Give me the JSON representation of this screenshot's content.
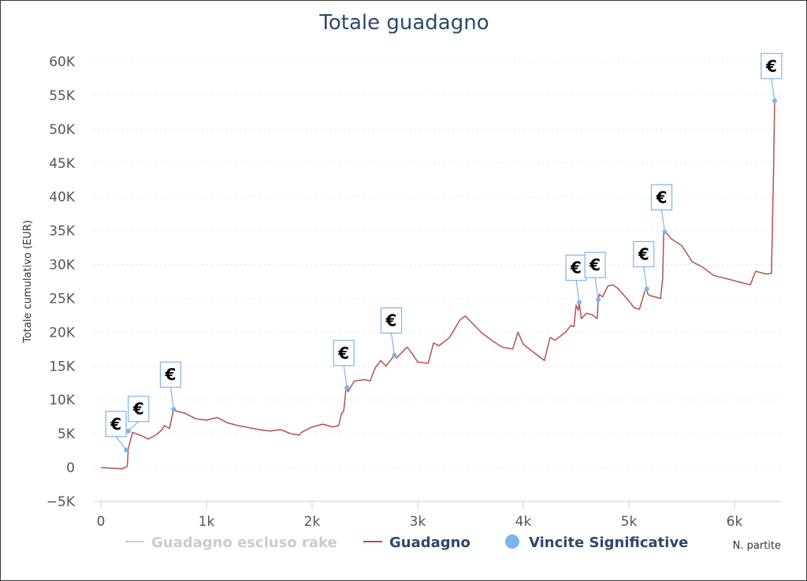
{
  "chart_data": {
    "type": "line",
    "title": "Totale guadagno",
    "xlabel": "N. partite",
    "ylabel": "Totale cumulativo (EUR)",
    "xlim": [
      0,
      6400
    ],
    "ylim": [
      -5000,
      60000
    ],
    "x_ticks": [
      {
        "value": 0,
        "label": "0"
      },
      {
        "value": 1000,
        "label": "1k"
      },
      {
        "value": 2000,
        "label": "2k"
      },
      {
        "value": 3000,
        "label": "3k"
      },
      {
        "value": 4000,
        "label": "4k"
      },
      {
        "value": 5000,
        "label": "5k"
      },
      {
        "value": 6000,
        "label": "6k"
      }
    ],
    "y_ticks": [
      {
        "value": -5000,
        "label": "−5K"
      },
      {
        "value": 0,
        "label": "0"
      },
      {
        "value": 5000,
        "label": "5K"
      },
      {
        "value": 10000,
        "label": "10K"
      },
      {
        "value": 15000,
        "label": "15K"
      },
      {
        "value": 20000,
        "label": "20K"
      },
      {
        "value": 25000,
        "label": "25K"
      },
      {
        "value": 30000,
        "label": "30K"
      },
      {
        "value": 35000,
        "label": "35K"
      },
      {
        "value": 40000,
        "label": "40K"
      },
      {
        "value": 45000,
        "label": "45K"
      },
      {
        "value": 50000,
        "label": "50K"
      },
      {
        "value": 55000,
        "label": "55K"
      },
      {
        "value": 60000,
        "label": "60K"
      }
    ],
    "grid": "horizontal-dotted",
    "legend_position": "bottom",
    "series": [
      {
        "name": "Guadagno escluso rake",
        "color": "#cccccc",
        "visible": false,
        "x": [],
        "y": []
      },
      {
        "name": "Guadagno",
        "color": "#b5524c",
        "visible": true,
        "x": [
          0,
          100,
          200,
          250,
          260,
          300,
          400,
          450,
          520,
          580,
          600,
          650,
          680,
          690,
          700,
          800,
          900,
          1000,
          1100,
          1200,
          1300,
          1400,
          1500,
          1600,
          1700,
          1800,
          1880,
          1900,
          2000,
          2100,
          2200,
          2250,
          2280,
          2300,
          2320,
          2330,
          2340,
          2400,
          2500,
          2550,
          2600,
          2650,
          2700,
          2750,
          2780,
          2800,
          2900,
          2950,
          3000,
          3100,
          3150,
          3200,
          3300,
          3400,
          3450,
          3500,
          3600,
          3700,
          3800,
          3900,
          3950,
          4000,
          4100,
          4200,
          4250,
          4260,
          4300,
          4400,
          4450,
          4480,
          4500,
          4520,
          4530,
          4550,
          4600,
          4650,
          4700,
          4710,
          4720,
          4750,
          4800,
          4850,
          4900,
          5000,
          5050,
          5100,
          5150,
          5170,
          5180,
          5200,
          5300,
          5320,
          5330,
          5340,
          5350,
          5400,
          5500,
          5600,
          5700,
          5800,
          5900,
          6000,
          6100,
          6150,
          6200,
          6250,
          6300,
          6350,
          6370,
          6380,
          6390
        ],
        "y": [
          0,
          -100,
          -200,
          200,
          2800,
          5200,
          4600,
          4200,
          4800,
          5600,
          6200,
          5800,
          8000,
          8600,
          8400,
          8000,
          7200,
          7000,
          7400,
          6600,
          6200,
          5900,
          5600,
          5400,
          5600,
          5000,
          4800,
          5200,
          6000,
          6400,
          6000,
          6200,
          8000,
          8400,
          11500,
          11800,
          11200,
          12800,
          13000,
          12800,
          14800,
          15800,
          15000,
          16000,
          16600,
          16200,
          17800,
          16800,
          15600,
          15400,
          18400,
          18000,
          19200,
          21800,
          22400,
          21600,
          20000,
          18800,
          17800,
          17500,
          20000,
          18200,
          17000,
          15800,
          19000,
          19200,
          18800,
          20000,
          21000,
          20800,
          24000,
          23200,
          24400,
          22000,
          22800,
          22600,
          22000,
          24800,
          25600,
          25200,
          26800,
          27000,
          26400,
          24600,
          23600,
          23400,
          26000,
          26400,
          25600,
          25400,
          25000,
          28000,
          34800,
          35000,
          34800,
          33800,
          32800,
          30400,
          29600,
          28400,
          28000,
          27600,
          27200,
          27000,
          29000,
          28800,
          28600,
          28700,
          44000,
          54200,
          54500
        ]
      }
    ],
    "markers": {
      "name": "Vincite Significative",
      "color": "#7cb5ec",
      "symbol": "€",
      "points": [
        {
          "x": 240,
          "y": 2600
        },
        {
          "x": 260,
          "y": 5400
        },
        {
          "x": 690,
          "y": 8600
        },
        {
          "x": 2330,
          "y": 11800
        },
        {
          "x": 2780,
          "y": 16600
        },
        {
          "x": 4530,
          "y": 24400
        },
        {
          "x": 4710,
          "y": 24800
        },
        {
          "x": 5170,
          "y": 26400
        },
        {
          "x": 5340,
          "y": 34800
        },
        {
          "x": 6380,
          "y": 54200
        }
      ]
    },
    "legend": [
      {
        "label": "Guadagno escluso rake",
        "color": "#cccccc",
        "text_color": "#cccccc",
        "symbol": "line"
      },
      {
        "label": "Guadagno",
        "color": "#b5524c",
        "text_color": "#2b4a6b",
        "symbol": "line"
      },
      {
        "label": "Vincite Significative",
        "color": "#7cb5ec",
        "text_color": "#2b4a6b",
        "symbol": "circle"
      }
    ]
  }
}
